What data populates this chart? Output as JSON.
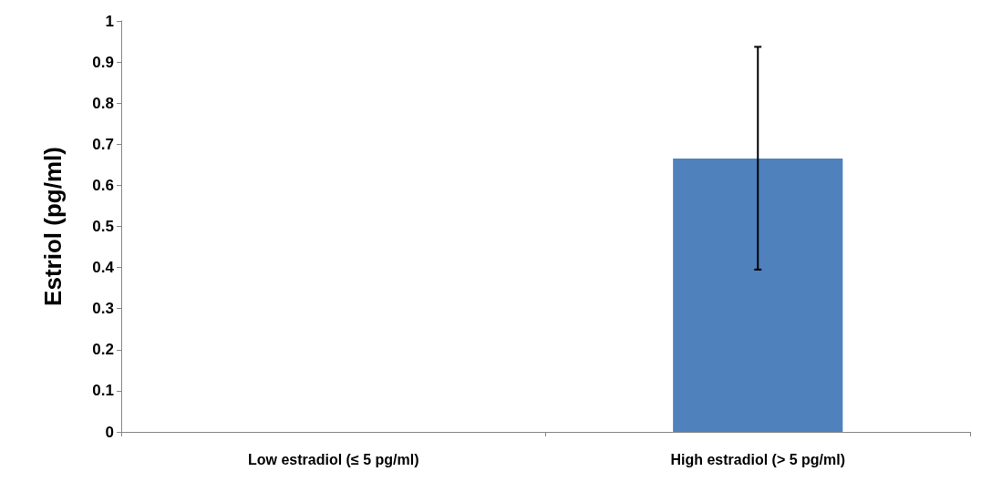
{
  "chart_data": {
    "type": "bar",
    "ylabel": "Estriol (pg/ml)",
    "categories": [
      "Low estradiol (≤ 5 pg/ml)",
      "High estradiol (> 5 pg/ml)"
    ],
    "values": [
      0,
      0.665
    ],
    "color": "#4f81bd",
    "errors": [
      null,
      [
        0.395,
        0.937
      ]
    ],
    "ylim": [
      0,
      1
    ],
    "yticks": [
      0,
      0.1,
      0.2,
      0.3,
      0.4,
      0.5,
      0.6,
      0.7,
      0.8,
      0.9,
      1
    ]
  }
}
